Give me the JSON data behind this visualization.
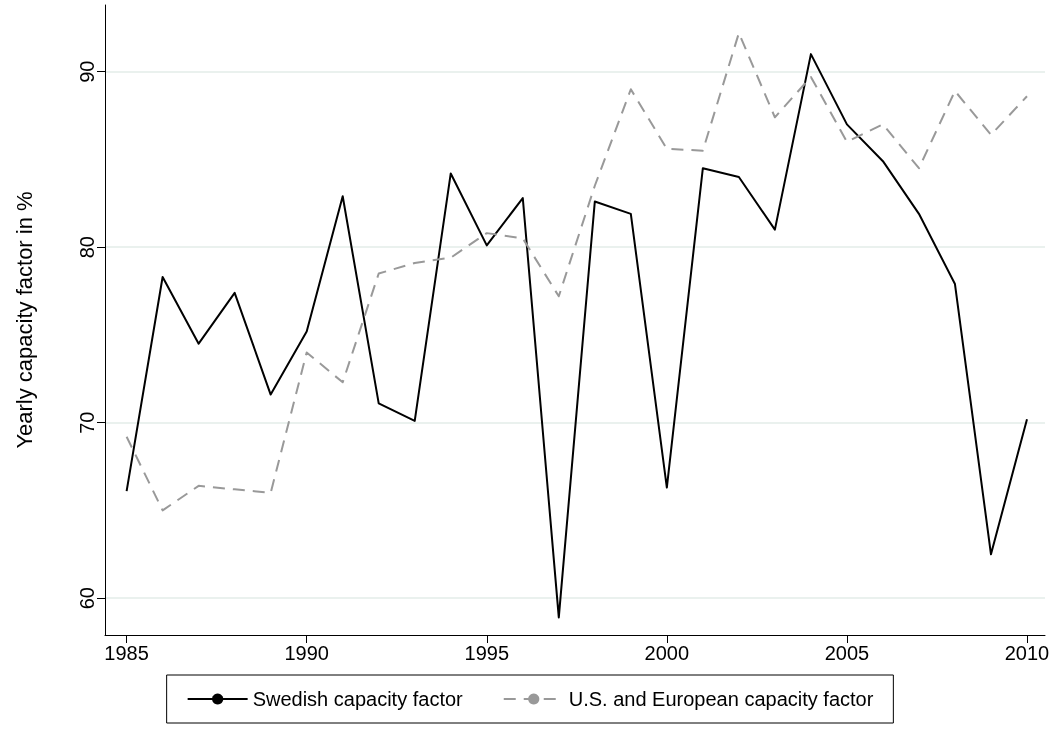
{
  "chart_data": {
    "type": "line",
    "ylabel": "Yearly capacity factor in %",
    "x": [
      1985,
      1986,
      1987,
      1988,
      1989,
      1990,
      1991,
      1992,
      1993,
      1994,
      1995,
      1996,
      1997,
      1998,
      1999,
      2000,
      2001,
      2002,
      2003,
      2004,
      2005,
      2006,
      2007,
      2008,
      2009,
      2010
    ],
    "series": [
      {
        "name": "Swedish capacity factor",
        "color": "#000000",
        "line_style": "solid",
        "values": [
          66.1,
          78.3,
          74.5,
          77.4,
          71.6,
          75.2,
          82.9,
          71.1,
          70.1,
          84.2,
          80.1,
          82.8,
          58.9,
          82.6,
          81.9,
          66.3,
          84.5,
          84.0,
          81.0,
          91.0,
          87.0,
          84.9,
          81.9,
          77.9,
          62.5,
          70.2
        ]
      },
      {
        "name": "U.S. and European capacity factor",
        "color": "#999999",
        "line_style": "dashed",
        "values": [
          69.2,
          65.0,
          66.4,
          66.2,
          66.0,
          74.0,
          72.3,
          78.5,
          79.1,
          79.4,
          80.8,
          80.5,
          77.2,
          83.5,
          89.0,
          85.6,
          85.5,
          92.2,
          87.4,
          89.7,
          86.0,
          87.0,
          84.5,
          88.9,
          86.4,
          88.6
        ]
      }
    ],
    "xlim": [
      1984.4,
      2010.5
    ],
    "xticks": [
      1985,
      1990,
      1995,
      2000,
      2005,
      2010
    ],
    "ylim": [
      57.9,
      93.8
    ],
    "yticks": [
      60,
      70,
      80,
      90
    ],
    "grid": "y",
    "legend": "bottom",
    "marker": "none"
  }
}
